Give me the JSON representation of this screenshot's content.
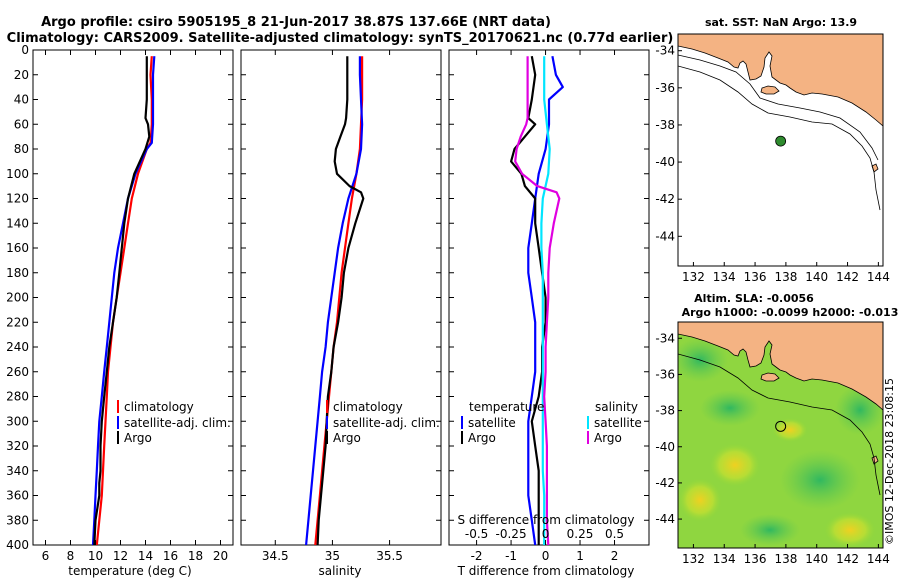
{
  "title": {
    "line1": "Argo profile: csiro 5905195_8 21-Jun-2017 38.87S 137.66E (NRT data)",
    "line2": "Climatology: CARS2009. Satellite-adjusted climatology: synTS_20170621.nc (0.77d earlier)"
  },
  "colors": {
    "climatology": "#ff0000",
    "satellite": "#0000ff",
    "argo": "#000000",
    "salinity_satellite": "#00e5ff",
    "salinity_argo": "#e000e0",
    "land": "#f4b383",
    "marker": "#2e8b2e"
  },
  "chart_data": [
    {
      "type": "line",
      "id": "temperature",
      "xlabel": "temperature (deg C)",
      "ylim": [
        0,
        400
      ],
      "xlim": [
        5,
        21
      ],
      "xticks": [
        "6",
        "8",
        "10",
        "12",
        "14",
        "16",
        "18",
        "20"
      ],
      "xtick_values": [
        6,
        8,
        10,
        12,
        14,
        16,
        18,
        20
      ],
      "yticks": [
        "0",
        "20",
        "40",
        "60",
        "80",
        "100",
        "120",
        "140",
        "160",
        "180",
        "200",
        "220",
        "240",
        "260",
        "280",
        "300",
        "320",
        "340",
        "360",
        "380",
        "400"
      ],
      "legend": [
        "climatology",
        "satellite-adj. clim.",
        "Argo"
      ],
      "series": [
        {
          "name": "climatology",
          "depth": [
            5,
            20,
            40,
            60,
            75,
            80,
            100,
            120,
            140,
            160,
            180,
            200,
            220,
            240,
            260,
            280,
            300,
            320,
            340,
            360,
            380,
            400
          ],
          "values": [
            14.5,
            14.4,
            14.5,
            14.5,
            14.4,
            14.1,
            13.4,
            12.9,
            12.6,
            12.3,
            12.0,
            11.7,
            11.4,
            11.2,
            11.0,
            10.9,
            10.8,
            10.7,
            10.6,
            10.5,
            10.3,
            10.1
          ]
        },
        {
          "name": "satellite-adj. clim.",
          "depth": [
            5,
            20,
            40,
            60,
            75,
            80,
            100,
            120,
            140,
            160,
            180,
            200,
            220,
            240,
            260,
            280,
            300,
            320,
            340,
            360,
            380,
            400
          ],
          "values": [
            14.7,
            14.6,
            14.6,
            14.6,
            14.5,
            14.1,
            13.2,
            12.6,
            12.2,
            11.8,
            11.5,
            11.3,
            11.1,
            10.9,
            10.7,
            10.5,
            10.3,
            10.2,
            10.1,
            10.0,
            9.9,
            9.8
          ]
        },
        {
          "name": "Argo",
          "depth": [
            5,
            20,
            40,
            55,
            60,
            70,
            80,
            100,
            120,
            140,
            160,
            180,
            200,
            220,
            240,
            260,
            280,
            300,
            320,
            340,
            350,
            360,
            380,
            400
          ],
          "values": [
            14.1,
            14.1,
            14.1,
            14.0,
            14.2,
            14.3,
            14.0,
            13.1,
            12.6,
            12.3,
            12.1,
            11.9,
            11.7,
            11.4,
            11.1,
            10.9,
            10.7,
            10.5,
            10.4,
            10.4,
            10.3,
            10.3,
            10.0,
            9.9
          ]
        }
      ]
    },
    {
      "type": "line",
      "id": "salinity",
      "xlabel": "salinity",
      "ylim": [
        0,
        400
      ],
      "xlim": [
        34.2,
        35.95
      ],
      "xticks": [
        "34.5",
        "35",
        "35.5"
      ],
      "xtick_values": [
        34.5,
        35,
        35.5
      ],
      "legend": [
        "climatology",
        "satellite-adj. clim.",
        "Argo"
      ],
      "series": [
        {
          "name": "climatology",
          "depth": [
            5,
            20,
            40,
            60,
            80,
            100,
            120,
            140,
            160,
            180,
            200,
            220,
            240,
            260,
            280,
            300,
            320,
            340,
            360,
            380,
            400
          ],
          "values": [
            35.26,
            35.26,
            35.26,
            35.25,
            35.24,
            35.21,
            35.17,
            35.14,
            35.11,
            35.08,
            35.06,
            35.04,
            35.01,
            34.99,
            34.97,
            34.95,
            34.93,
            34.91,
            34.89,
            34.87,
            34.85
          ]
        },
        {
          "name": "satellite-adj. clim.",
          "depth": [
            5,
            20,
            40,
            60,
            80,
            100,
            120,
            140,
            160,
            180,
            200,
            220,
            240,
            260,
            280,
            300,
            320,
            340,
            360,
            380,
            400
          ],
          "values": [
            35.24,
            35.24,
            35.25,
            35.26,
            35.25,
            35.21,
            35.14,
            35.09,
            35.05,
            35.02,
            34.99,
            34.96,
            34.94,
            34.91,
            34.89,
            34.87,
            34.85,
            34.83,
            34.81,
            34.79,
            34.77
          ]
        },
        {
          "name": "Argo",
          "depth": [
            5,
            20,
            40,
            55,
            60,
            70,
            80,
            90,
            100,
            110,
            115,
            120,
            140,
            160,
            180,
            200,
            220,
            240,
            260,
            280,
            300,
            320,
            340,
            360,
            380,
            400
          ],
          "values": [
            35.13,
            35.13,
            35.13,
            35.12,
            35.11,
            35.07,
            35.03,
            35.02,
            35.04,
            35.15,
            35.25,
            35.27,
            35.2,
            35.14,
            35.1,
            35.08,
            35.05,
            35.01,
            34.99,
            34.96,
            34.95,
            34.94,
            34.92,
            34.9,
            34.88,
            34.87
          ]
        }
      ]
    },
    {
      "type": "line",
      "id": "difference",
      "xlabel": "T difference from climatology",
      "xlabel_top": "S difference from climatology",
      "ylim": [
        0,
        400
      ],
      "xlim": [
        -2.8,
        3.0
      ],
      "xticks": [
        "-2",
        "-1",
        "0",
        "1",
        "2"
      ],
      "xtick_values": [
        -2,
        -1,
        0,
        1,
        2
      ],
      "sticks": [
        "-0.5",
        "-0.25",
        "0",
        "0.25",
        "0.5"
      ],
      "stick_values": [
        -0.5,
        -0.25,
        0,
        0.25,
        0.5
      ],
      "legend_temperature_title": "temperature",
      "legend_salinity_title": "salinity",
      "legend": [
        "satellite",
        "Argo",
        "satellite",
        "Argo"
      ],
      "series": [
        {
          "name": "T satellite",
          "depth": [
            5,
            20,
            30,
            40,
            60,
            80,
            100,
            120,
            140,
            160,
            180,
            200,
            220,
            240,
            260,
            280,
            300,
            320,
            340,
            360,
            380,
            400
          ],
          "values": [
            0.2,
            0.3,
            0.5,
            0.1,
            0.1,
            0.0,
            -0.2,
            -0.3,
            -0.4,
            -0.5,
            -0.5,
            -0.4,
            -0.3,
            -0.3,
            -0.3,
            -0.4,
            -0.5,
            -0.5,
            -0.5,
            -0.5,
            -0.4,
            -0.3
          ]
        },
        {
          "name": "T Argo",
          "depth": [
            5,
            20,
            40,
            55,
            60,
            70,
            80,
            90,
            100,
            110,
            120,
            140,
            160,
            180,
            200,
            220,
            240,
            260,
            280,
            300,
            320,
            340,
            360,
            380,
            400
          ],
          "values": [
            -0.4,
            -0.3,
            -0.4,
            -0.5,
            -0.3,
            -0.6,
            -0.9,
            -1.0,
            -0.7,
            -0.6,
            -0.3,
            -0.3,
            -0.2,
            -0.1,
            0.0,
            0.0,
            -0.1,
            -0.1,
            -0.2,
            -0.4,
            -0.3,
            -0.2,
            -0.2,
            -0.2,
            -0.2
          ]
        },
        {
          "name": "S satellite",
          "depth": [
            5,
            20,
            40,
            60,
            80,
            100,
            120,
            140,
            160,
            180,
            200,
            220,
            240,
            260,
            280,
            300,
            320,
            340,
            360,
            380,
            400
          ],
          "values": [
            -0.01,
            -0.01,
            -0.01,
            0.01,
            0.03,
            0.02,
            -0.02,
            -0.03,
            -0.03,
            -0.02,
            -0.02,
            -0.02,
            -0.02,
            -0.02,
            -0.02,
            -0.02,
            -0.02,
            -0.02,
            -0.01,
            -0.01,
            -0.01
          ]
        },
        {
          "name": "S Argo",
          "depth": [
            5,
            20,
            40,
            55,
            60,
            70,
            80,
            90,
            100,
            110,
            115,
            120,
            140,
            160,
            180,
            200,
            220,
            240,
            260,
            280,
            300,
            320,
            340,
            360,
            380,
            400
          ],
          "values": [
            -0.13,
            -0.13,
            -0.13,
            -0.13,
            -0.14,
            -0.18,
            -0.21,
            -0.22,
            -0.17,
            -0.06,
            0.08,
            0.1,
            0.06,
            0.03,
            0.02,
            0.02,
            0.01,
            0.0,
            0.0,
            -0.01,
            0.0,
            0.01,
            0.01,
            0.01,
            0.01,
            0.02
          ]
        }
      ]
    }
  ],
  "map_top": {
    "title": "sat. SST: NaN Argo: 13.9",
    "xticks": [
      "132",
      "134",
      "136",
      "138",
      "140",
      "142",
      "144"
    ],
    "yticks": [
      "-34",
      "-36",
      "-38",
      "-40",
      "-42",
      "-44"
    ],
    "xlim": [
      131,
      144.3
    ],
    "ylim": [
      -45.6,
      -33.1
    ],
    "profile_lon": 137.66,
    "profile_lat": -38.87
  },
  "map_bottom": {
    "title1": "Altim. SLA: -0.0056",
    "title2": "Argo h1000: -0.0099 h2000: -0.013",
    "xticks": [
      "132",
      "134",
      "136",
      "138",
      "140",
      "142",
      "144"
    ],
    "yticks": [
      "-34",
      "-36",
      "-38",
      "-40",
      "-42",
      "-44"
    ],
    "xlim": [
      131,
      144.3
    ],
    "ylim": [
      -45.6,
      -33.1
    ],
    "profile_lon": 137.66,
    "profile_lat": -38.87
  },
  "credit": "©IMOS 12-Dec-2018 23:08:15"
}
